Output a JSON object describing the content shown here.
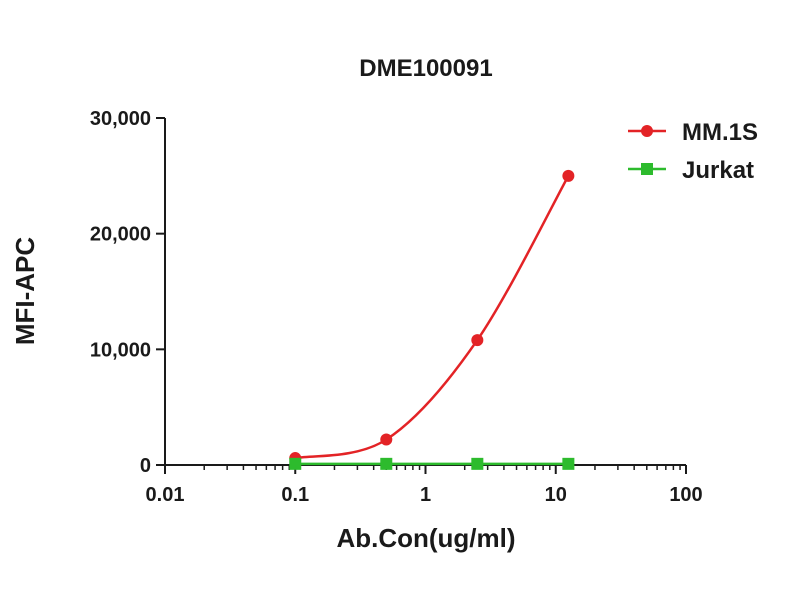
{
  "chart_data": {
    "type": "line",
    "title": "DME100091",
    "xlabel": "Ab.Con(ug/ml)",
    "ylabel": "MFI-APC",
    "x_scale": "log",
    "xlim": [
      0.01,
      100
    ],
    "ylim": [
      0,
      30000
    ],
    "x_ticks": [
      0.01,
      0.1,
      1,
      10,
      100
    ],
    "x_tick_labels": [
      "0.01",
      "0.1",
      "1",
      "10",
      "100"
    ],
    "y_ticks": [
      0,
      10000,
      20000,
      30000
    ],
    "y_tick_labels": [
      "0",
      "10,000",
      "20,000",
      "30,000"
    ],
    "grid": false,
    "legend_position": "top-right",
    "series": [
      {
        "name": "MM.1S",
        "color": "#e32326",
        "marker": "circle",
        "x": [
          0.1,
          0.5,
          2.5,
          12.5
        ],
        "y": [
          600,
          2200,
          10800,
          25000
        ]
      },
      {
        "name": "Jurkat",
        "color": "#2dbb2d",
        "marker": "square",
        "x": [
          0.1,
          0.5,
          2.5,
          12.5
        ],
        "y": [
          100,
          100,
          100,
          100
        ]
      }
    ]
  }
}
